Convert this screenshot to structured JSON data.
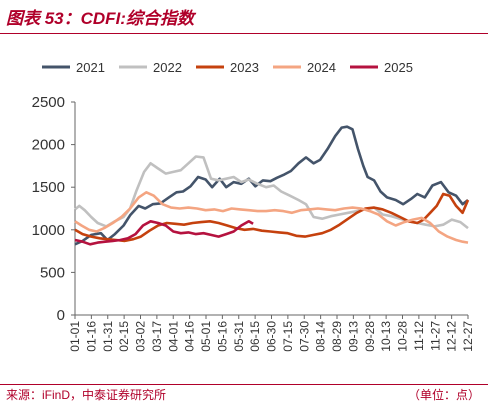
{
  "header": {
    "title": "图表 53：CDFI:综合指数"
  },
  "footer": {
    "source": "来源：iFinD，中泰证券研究所",
    "unit": "（单位：点）"
  },
  "chart_data": {
    "type": "line",
    "ylim": [
      0,
      2500
    ],
    "yticks": [
      0,
      500,
      1000,
      1500,
      2000,
      2500
    ],
    "x_tick_labels": [
      "01-01",
      "01-16",
      "01-31",
      "02-15",
      "03-02",
      "03-17",
      "04-01",
      "04-16",
      "05-01",
      "05-16",
      "05-31",
      "06-15",
      "06-30",
      "07-15",
      "07-30",
      "08-14",
      "08-29",
      "09-13",
      "09-28",
      "10-13",
      "10-28",
      "11-12",
      "11-27",
      "12-12",
      "12-27"
    ],
    "x_domain": [
      1,
      365
    ],
    "grid": false,
    "legend_position": "top",
    "series": [
      {
        "name": "2021",
        "color": "#44546a",
        "x": [
          1,
          8,
          16,
          25,
          31,
          38,
          46,
          52,
          60,
          66,
          73,
          80,
          88,
          95,
          101,
          108,
          115,
          122,
          128,
          135,
          141,
          148,
          155,
          162,
          168,
          175,
          182,
          188,
          195,
          201,
          208,
          215,
          222,
          228,
          235,
          242,
          248,
          253,
          258,
          263,
          268,
          272,
          278,
          284,
          290,
          298,
          305,
          312,
          318,
          325,
          332,
          340,
          347,
          354,
          360,
          365
        ],
        "values": [
          830,
          870,
          940,
          960,
          880,
          950,
          1050,
          1170,
          1280,
          1250,
          1300,
          1310,
          1380,
          1440,
          1450,
          1510,
          1620,
          1590,
          1500,
          1600,
          1500,
          1560,
          1540,
          1600,
          1510,
          1580,
          1570,
          1610,
          1650,
          1690,
          1780,
          1850,
          1780,
          1820,
          1950,
          2100,
          2200,
          2210,
          2180,
          1950,
          1750,
          1620,
          1580,
          1450,
          1380,
          1350,
          1300,
          1360,
          1420,
          1380,
          1520,
          1560,
          1440,
          1400,
          1300,
          1350
        ]
      },
      {
        "name": "2022",
        "color": "#c0c0c0",
        "x": [
          1,
          5,
          10,
          16,
          22,
          30,
          38,
          46,
          52,
          58,
          65,
          71,
          78,
          85,
          92,
          99,
          106,
          113,
          120,
          127,
          134,
          141,
          148,
          155,
          162,
          170,
          178,
          185,
          192,
          200,
          208,
          215,
          222,
          230,
          238,
          246,
          254,
          262,
          270,
          278,
          286,
          294,
          302,
          310,
          318,
          326,
          334,
          342,
          350,
          358,
          365
        ],
        "values": [
          1240,
          1280,
          1230,
          1150,
          1080,
          1040,
          1100,
          1150,
          1250,
          1460,
          1680,
          1780,
          1720,
          1660,
          1680,
          1700,
          1780,
          1860,
          1850,
          1600,
          1580,
          1600,
          1620,
          1560,
          1590,
          1540,
          1500,
          1520,
          1450,
          1400,
          1350,
          1300,
          1150,
          1130,
          1160,
          1180,
          1200,
          1220,
          1240,
          1260,
          1180,
          1160,
          1130,
          1100,
          1080,
          1060,
          1040,
          1060,
          1120,
          1090,
          1020
        ]
      },
      {
        "name": "2023",
        "color": "#c5410e",
        "x": [
          1,
          8,
          16,
          24,
          31,
          39,
          47,
          55,
          62,
          70,
          78,
          86,
          94,
          102,
          110,
          118,
          126,
          134,
          142,
          150,
          158,
          166,
          174,
          182,
          190,
          198,
          206,
          214,
          222,
          230,
          238,
          246,
          254,
          262,
          270,
          278,
          286,
          294,
          302,
          310,
          318,
          324,
          330,
          336,
          342,
          348,
          354,
          360,
          365
        ],
        "values": [
          1000,
          950,
          920,
          900,
          890,
          880,
          870,
          890,
          920,
          990,
          1050,
          1080,
          1070,
          1060,
          1080,
          1090,
          1100,
          1080,
          1050,
          1020,
          1000,
          1010,
          990,
          980,
          970,
          960,
          930,
          920,
          940,
          960,
          1000,
          1060,
          1130,
          1200,
          1250,
          1260,
          1240,
          1200,
          1150,
          1100,
          1080,
          1120,
          1200,
          1280,
          1420,
          1400,
          1280,
          1200,
          1350
        ]
      },
      {
        "name": "2024",
        "color": "#f4a582",
        "x": [
          1,
          7,
          14,
          21,
          28,
          36,
          44,
          52,
          60,
          67,
          74,
          82,
          90,
          98,
          106,
          114,
          122,
          130,
          138,
          146,
          154,
          162,
          170,
          178,
          186,
          194,
          202,
          210,
          218,
          226,
          234,
          242,
          250,
          258,
          266,
          274,
          282,
          290,
          298,
          306,
          314,
          322,
          330,
          338,
          346,
          354,
          360,
          365
        ],
        "values": [
          1100,
          1050,
          1000,
          980,
          1020,
          1080,
          1150,
          1250,
          1380,
          1440,
          1400,
          1300,
          1260,
          1250,
          1260,
          1250,
          1230,
          1240,
          1220,
          1250,
          1240,
          1230,
          1220,
          1220,
          1230,
          1220,
          1200,
          1230,
          1240,
          1250,
          1240,
          1230,
          1250,
          1260,
          1250,
          1220,
          1180,
          1100,
          1050,
          1090,
          1120,
          1140,
          1080,
          980,
          920,
          880,
          860,
          850
        ]
      },
      {
        "name": "2025",
        "color": "#b5123f",
        "x": [
          1,
          8,
          15,
          22,
          29,
          36,
          43,
          50,
          57,
          64,
          71,
          78,
          85,
          92,
          99,
          106,
          113,
          120,
          127,
          134,
          141,
          148,
          155,
          162,
          166
        ],
        "values": [
          880,
          860,
          830,
          850,
          860,
          870,
          880,
          900,
          950,
          1050,
          1100,
          1080,
          1050,
          980,
          960,
          970,
          950,
          960,
          940,
          920,
          950,
          980,
          1050,
          1100,
          1070
        ]
      }
    ]
  }
}
